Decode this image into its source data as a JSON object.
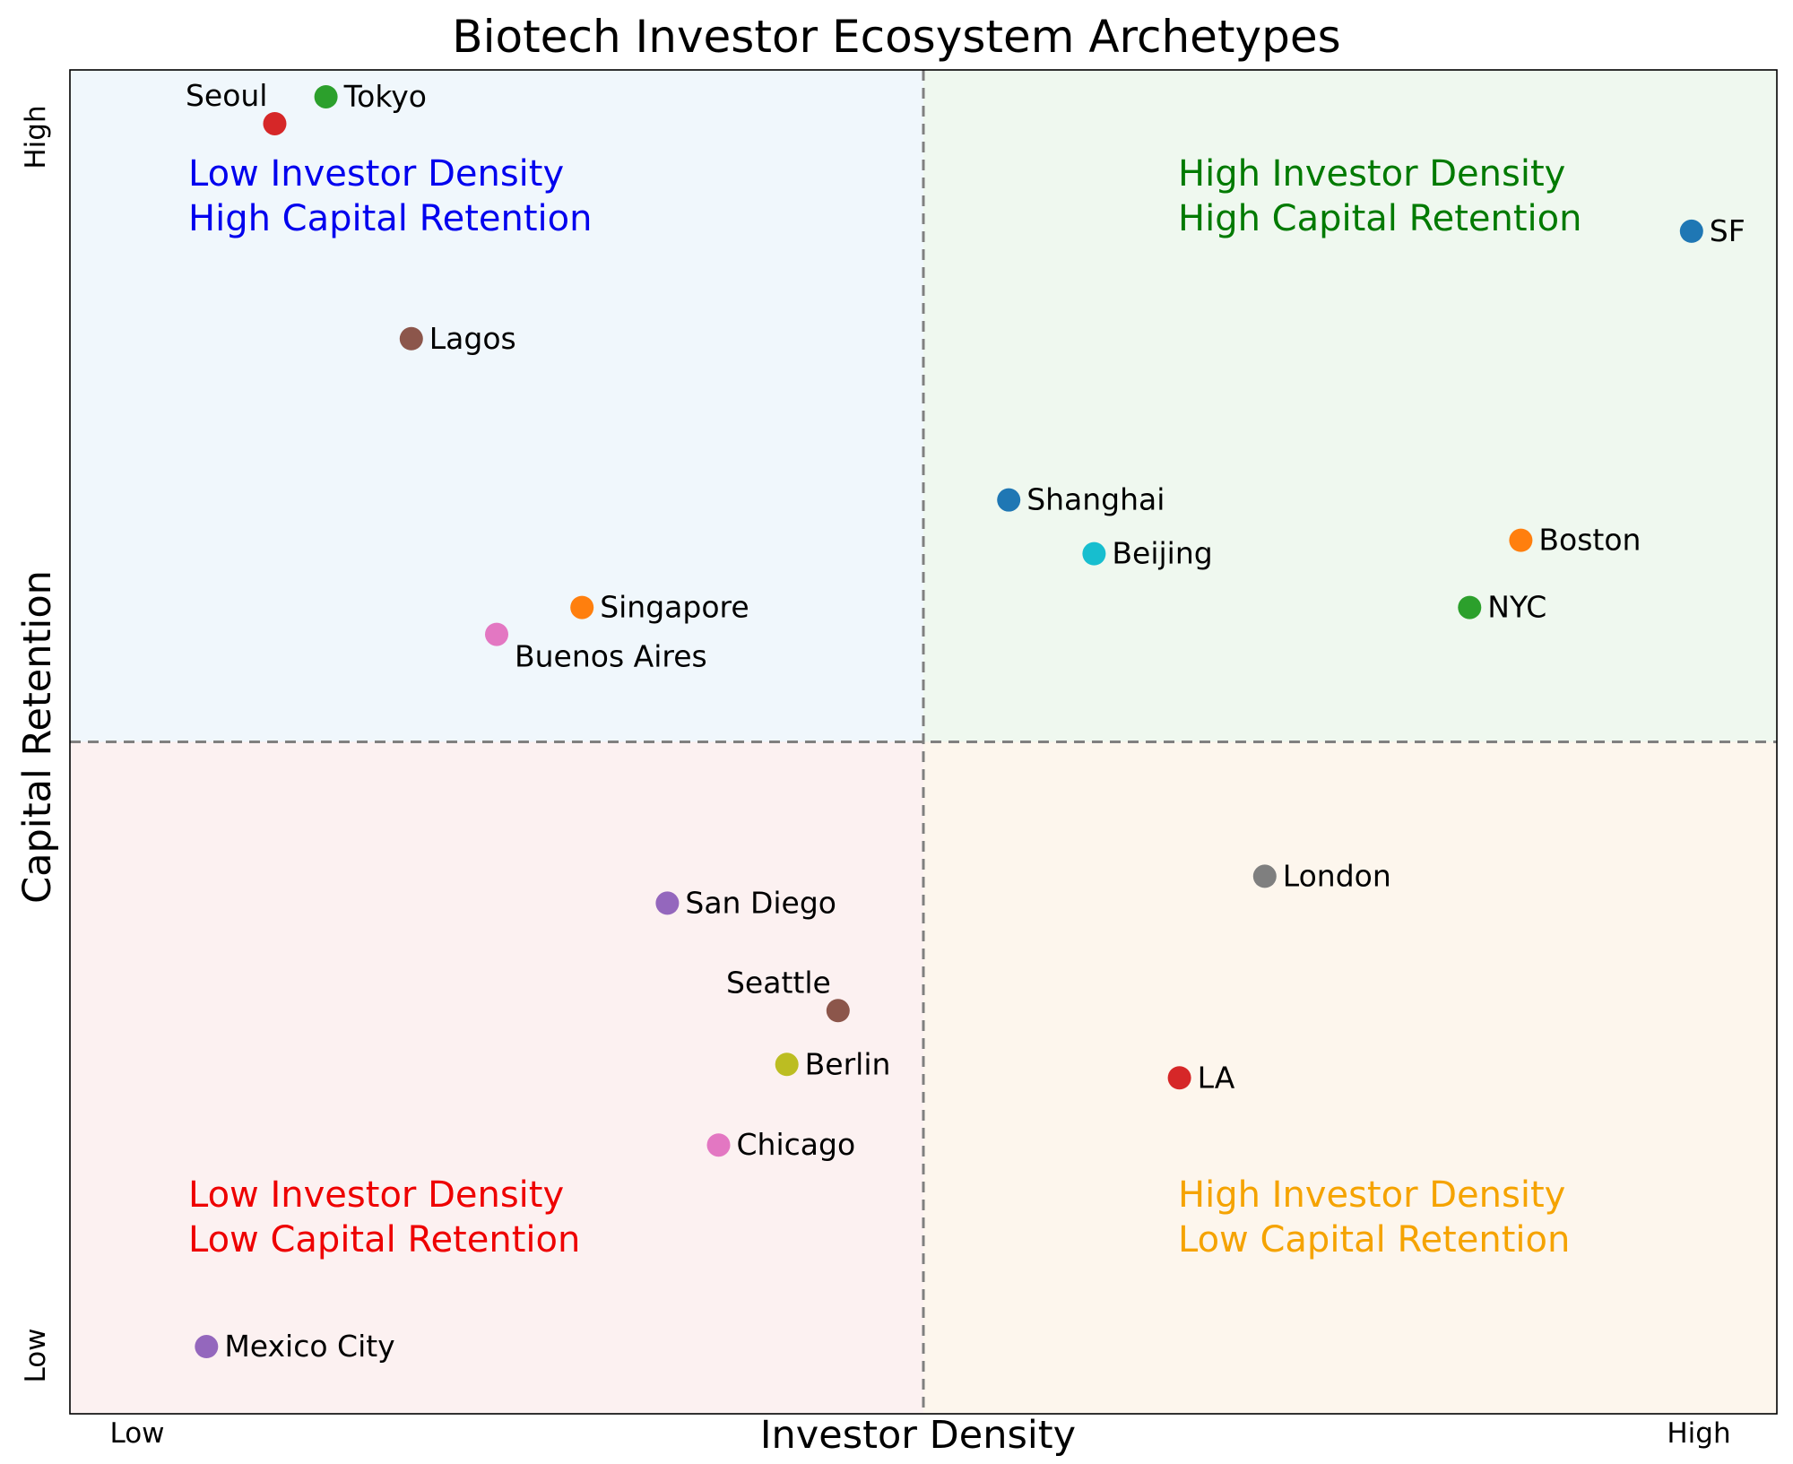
{
  "chart_data": {
    "type": "scatter",
    "title": "Biotech Investor Ecosystem Archetypes",
    "xlabel": "Investor Density",
    "ylabel": "Capital Retention",
    "xlim": [
      0,
      1
    ],
    "ylim": [
      0,
      1
    ],
    "x_ticks": {
      "low": "Low",
      "high": "High"
    },
    "y_ticks": {
      "low": "Low",
      "high": "High"
    },
    "divider_x": 0.5,
    "divider_y": 0.5,
    "grid": false,
    "quadrants": [
      {
        "id": "top-left",
        "line1": "Low Investor Density",
        "line2": "High Capital Retention",
        "color": "#0000ee",
        "bg": "#f0f7fc"
      },
      {
        "id": "top-right",
        "line1": "High Investor Density",
        "line2": "High Capital Retention",
        "color": "#007a00",
        "bg": "#eff8ef"
      },
      {
        "id": "bottom-left",
        "line1": "Low Investor Density",
        "line2": "Low Capital Retention",
        "color": "#ee0000",
        "bg": "#fcf1f1"
      },
      {
        "id": "bottom-right",
        "line1": "High Investor Density",
        "line2": "Low Capital Retention",
        "color": "#f5a300",
        "bg": "#fdf6ed"
      }
    ],
    "points": [
      {
        "name": "Seoul",
        "x": 0.12,
        "y": 0.96,
        "color": "#d62728",
        "label_pos": "upper-left"
      },
      {
        "name": "Tokyo",
        "x": 0.15,
        "y": 0.98,
        "color": "#2ca02c",
        "label_pos": "right"
      },
      {
        "name": "Lagos",
        "x": 0.2,
        "y": 0.8,
        "color": "#8c564b",
        "label_pos": "right"
      },
      {
        "name": "Singapore",
        "x": 0.3,
        "y": 0.6,
        "color": "#ff7f0e",
        "label_pos": "right"
      },
      {
        "name": "Buenos Aires",
        "x": 0.25,
        "y": 0.58,
        "color": "#e377c2",
        "label_pos": "lower-right"
      },
      {
        "name": "Shanghai",
        "x": 0.55,
        "y": 0.68,
        "color": "#1f77b4",
        "label_pos": "right"
      },
      {
        "name": "Beijing",
        "x": 0.6,
        "y": 0.64,
        "color": "#17becf",
        "label_pos": "right"
      },
      {
        "name": "SF",
        "x": 0.95,
        "y": 0.88,
        "color": "#1f77b4",
        "label_pos": "right"
      },
      {
        "name": "Boston",
        "x": 0.85,
        "y": 0.65,
        "color": "#ff7f0e",
        "label_pos": "right"
      },
      {
        "name": "NYC",
        "x": 0.82,
        "y": 0.6,
        "color": "#2ca02c",
        "label_pos": "right"
      },
      {
        "name": "London",
        "x": 0.7,
        "y": 0.4,
        "color": "#7f7f7f",
        "label_pos": "right"
      },
      {
        "name": "LA",
        "x": 0.65,
        "y": 0.25,
        "color": "#d62728",
        "label_pos": "right"
      },
      {
        "name": "San Diego",
        "x": 0.35,
        "y": 0.38,
        "color": "#9467bd",
        "label_pos": "right"
      },
      {
        "name": "Seattle",
        "x": 0.45,
        "y": 0.3,
        "color": "#8c564b",
        "label_pos": "upper-left"
      },
      {
        "name": "Berlin",
        "x": 0.42,
        "y": 0.26,
        "color": "#bcbd22",
        "label_pos": "right"
      },
      {
        "name": "Chicago",
        "x": 0.38,
        "y": 0.2,
        "color": "#e377c2",
        "label_pos": "right"
      },
      {
        "name": "Mexico City",
        "x": 0.08,
        "y": 0.05,
        "color": "#9467bd",
        "label_pos": "right"
      }
    ]
  }
}
